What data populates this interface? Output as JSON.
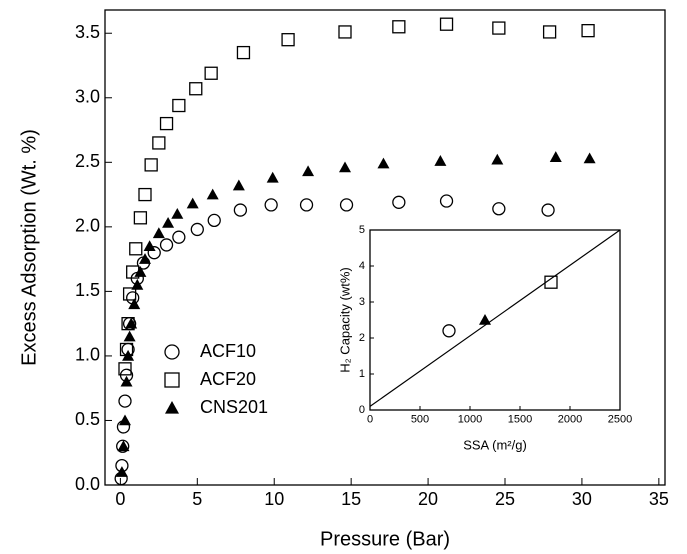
{
  "chart_data": [
    {
      "type": "scatter",
      "x_label": "Pressure (Bar)",
      "y_label": "Excess Adsorption (Wt. %)",
      "xlim": [
        -1,
        35.4
      ],
      "ylim": [
        0,
        3.68
      ],
      "xticks": [
        0,
        5,
        10,
        15,
        20,
        25,
        30,
        35
      ],
      "yticks": [
        {
          "value": 0,
          "label": "0.0"
        },
        0.5,
        {
          "value": 1,
          "label": "1.0"
        },
        1.5,
        {
          "value": 2,
          "label": "2.0"
        },
        2.5,
        {
          "value": 3,
          "label": "3.0"
        },
        3.5
      ],
      "legend": "lower-left",
      "series": [
        {
          "name": "ACF10",
          "marker": "circle",
          "color": "#000",
          "x": [
            0.05,
            0.1,
            0.15,
            0.2,
            0.3,
            0.4,
            0.5,
            0.6,
            0.8,
            1.1,
            1.5,
            2.2,
            3,
            3.8,
            5,
            6.1,
            7.8,
            9.8,
            12.1,
            14.7,
            18.1,
            21.2,
            24.6,
            27.8
          ],
          "values": [
            0.05,
            0.15,
            0.3,
            0.45,
            0.65,
            0.85,
            1.05,
            1.25,
            1.45,
            1.6,
            1.72,
            1.8,
            1.86,
            1.92,
            1.98,
            2.05,
            2.13,
            2.17,
            2.17,
            2.17,
            2.19,
            2.2,
            2.14,
            2.13
          ]
        },
        {
          "name": "ACF20",
          "marker": "square",
          "color": "#000",
          "x": [
            0.3,
            0.4,
            0.5,
            0.6,
            0.8,
            1.0,
            1.3,
            1.6,
            2,
            2.5,
            3,
            3.8,
            4.9,
            5.9,
            8,
            10.9,
            14.6,
            18.1,
            21.2,
            24.6,
            27.9,
            30.4
          ],
          "values": [
            0.9,
            1.05,
            1.25,
            1.48,
            1.65,
            1.83,
            2.07,
            2.25,
            2.48,
            2.65,
            2.8,
            2.94,
            3.07,
            3.19,
            3.35,
            3.45,
            3.51,
            3.55,
            3.57,
            3.54,
            3.51,
            3.52
          ]
        },
        {
          "name": "CNS201",
          "marker": "triangle",
          "color": "#000",
          "x": [
            0.1,
            0.2,
            0.3,
            0.4,
            0.5,
            0.6,
            0.7,
            0.9,
            1.1,
            1.3,
            1.6,
            1.9,
            2.5,
            3.1,
            3.7,
            4.7,
            6,
            7.7,
            9.9,
            12.2,
            14.6,
            17.1,
            20.8,
            24.5,
            28.3,
            30.5
          ],
          "values": [
            0.1,
            0.3,
            0.5,
            0.8,
            1.0,
            1.15,
            1.25,
            1.4,
            1.55,
            1.65,
            1.75,
            1.85,
            1.95,
            2.03,
            2.1,
            2.18,
            2.25,
            2.32,
            2.38,
            2.43,
            2.46,
            2.49,
            2.51,
            2.52,
            2.54,
            2.53
          ]
        }
      ]
    },
    {
      "type": "scatter",
      "x_label": "SSA (m²/g)",
      "y_label": "H₂ Capacity (wt%)",
      "xlim": [
        0,
        2500
      ],
      "ylim": [
        0,
        5
      ],
      "xticks": [
        0,
        500,
        1000,
        1500,
        2000,
        2500
      ],
      "yticks": [
        0,
        1,
        2,
        3,
        4,
        5
      ],
      "series": [
        {
          "marker": "circle",
          "color": "#000",
          "x": [
            790
          ],
          "values": [
            2.2
          ]
        },
        {
          "marker": "triangle",
          "color": "#000",
          "x": [
            1150
          ],
          "values": [
            2.5
          ]
        },
        {
          "marker": "square",
          "color": "#000",
          "x": [
            1810
          ],
          "values": [
            3.55
          ]
        },
        {
          "type": "line",
          "color": "#000",
          "x": [
            0,
            2500
          ],
          "values": [
            0.1,
            5
          ]
        }
      ]
    }
  ]
}
